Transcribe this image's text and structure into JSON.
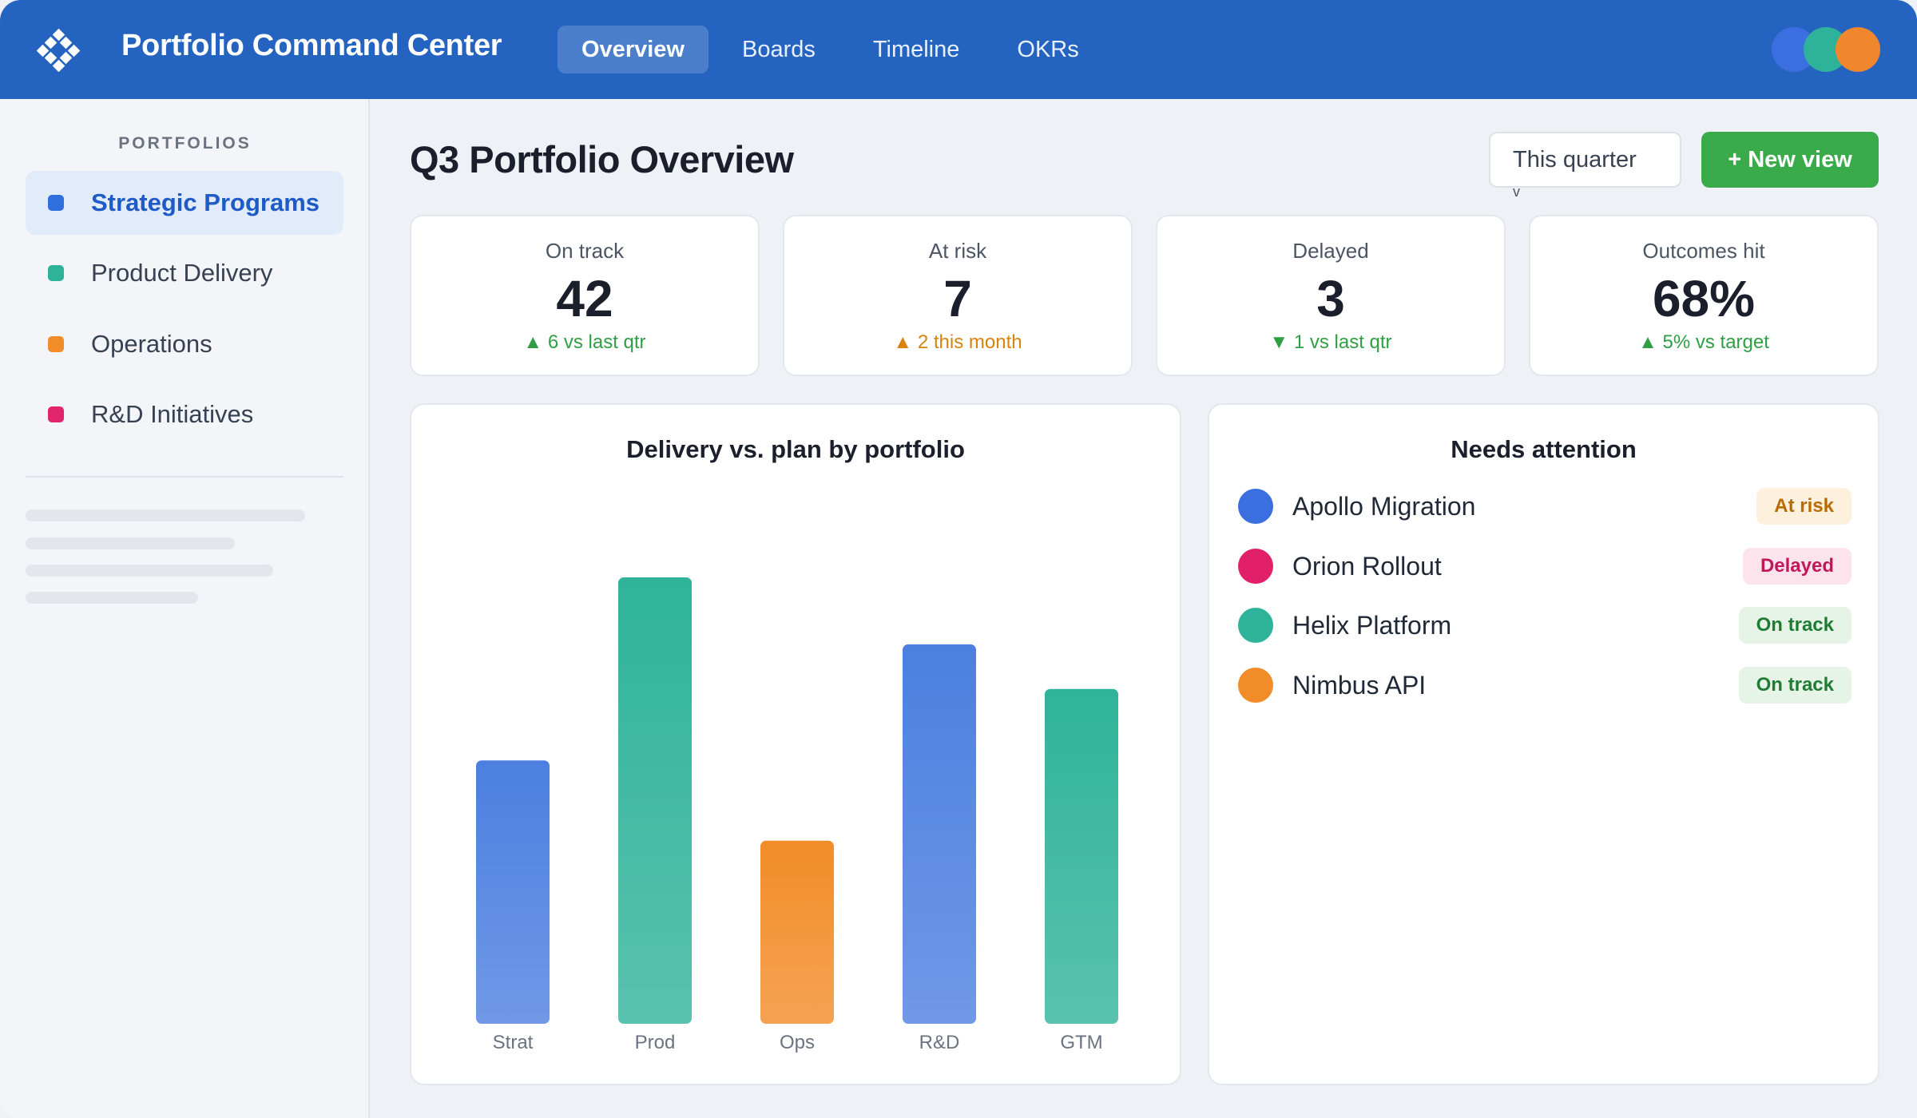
{
  "app": {
    "title": "Portfolio Command Center"
  },
  "nav": {
    "tabs": [
      {
        "label": "Overview",
        "active": true
      },
      {
        "label": "Boards",
        "active": false
      },
      {
        "label": "Timeline",
        "active": false
      },
      {
        "label": "OKRs",
        "active": false
      }
    ]
  },
  "avatars": [
    "#3b6fe0",
    "#2eb39a",
    "#f0862e"
  ],
  "sidebar": {
    "heading": "PORTFOLIOS",
    "items": [
      {
        "label": "Strategic Programs",
        "color": "#2f6fde",
        "active": true
      },
      {
        "label": "Product Delivery",
        "color": "#2eb39a",
        "active": false
      },
      {
        "label": "Operations",
        "color": "#f28c28",
        "active": false
      },
      {
        "label": "R&D Initiatives",
        "color": "#e2246a",
        "active": false
      }
    ]
  },
  "page": {
    "title": "Q3 Portfolio Overview",
    "period_select": "This quarter",
    "period_caret": "v",
    "new_view_button": "+ New view"
  },
  "kpis": [
    {
      "label": "On track",
      "value": "42",
      "delta": "▲ 6 vs last qtr",
      "tone": "green"
    },
    {
      "label": "At risk",
      "value": "7",
      "delta": "▲ 2 this month",
      "tone": "orange"
    },
    {
      "label": "Delayed",
      "value": "3",
      "delta": "▼ 1 vs last qtr",
      "tone": "green"
    },
    {
      "label": "Outcomes hit",
      "value": "68%",
      "delta": "▲ 5% vs target",
      "tone": "green"
    }
  ],
  "chart_data": {
    "type": "bar",
    "title": "Delivery vs. plan by portfolio",
    "categories": [
      "Strat",
      "Prod",
      "Ops",
      "R&D",
      "GTM"
    ],
    "values": [
      59,
      100,
      41,
      85,
      75
    ],
    "ylim": [
      0,
      100
    ],
    "grid": false,
    "bar_colors": [
      "#4c7fe0",
      "#2fb39a",
      "#f28c28",
      "#4c7fe0",
      "#2fb39a"
    ]
  },
  "attention": {
    "title": "Needs attention",
    "items": [
      {
        "name": "Apollo Migration",
        "color": "#3b6fe0",
        "status": "At risk",
        "status_fg": "#b86b00",
        "status_bg": "#fdf0dc"
      },
      {
        "name": "Orion Rollout",
        "color": "#e2206a",
        "status": "Delayed",
        "status_fg": "#c2185b",
        "status_bg": "#fde4ec"
      },
      {
        "name": "Helix Platform",
        "color": "#2eb39a",
        "status": "On track",
        "status_fg": "#1e7d33",
        "status_bg": "#e6f4e8"
      },
      {
        "name": "Nimbus API",
        "color": "#f28c28",
        "status": "On track",
        "status_fg": "#1e7d33",
        "status_bg": "#e6f4e8"
      }
    ]
  }
}
